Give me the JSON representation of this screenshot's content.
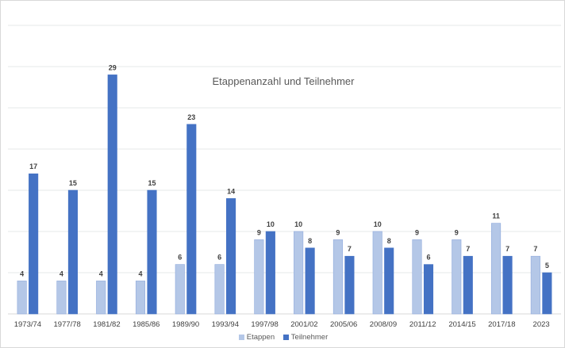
{
  "chart_data": {
    "type": "bar",
    "title": "Etappenanzahl und Teilnehmer",
    "xlabel": "",
    "ylabel": "",
    "ylim": [
      0,
      35
    ],
    "grid": true,
    "legend": "bottom",
    "categories": [
      "1973/74",
      "1977/78",
      "1981/82",
      "1985/86",
      "1989/90",
      "1993/94",
      "1997/98",
      "2001/02",
      "2005/06",
      "2008/09",
      "2011/12",
      "2014/15",
      "2017/18",
      "2023"
    ],
    "series": [
      {
        "name": "Etappen",
        "color": "#b4c7e7",
        "values": [
          4,
          4,
          4,
          4,
          6,
          6,
          9,
          10,
          9,
          10,
          9,
          9,
          11,
          7
        ]
      },
      {
        "name": "Teilnehmer",
        "color": "#4472c4",
        "values": [
          17,
          15,
          29,
          15,
          23,
          14,
          10,
          8,
          7,
          8,
          6,
          7,
          7,
          5
        ]
      }
    ]
  }
}
